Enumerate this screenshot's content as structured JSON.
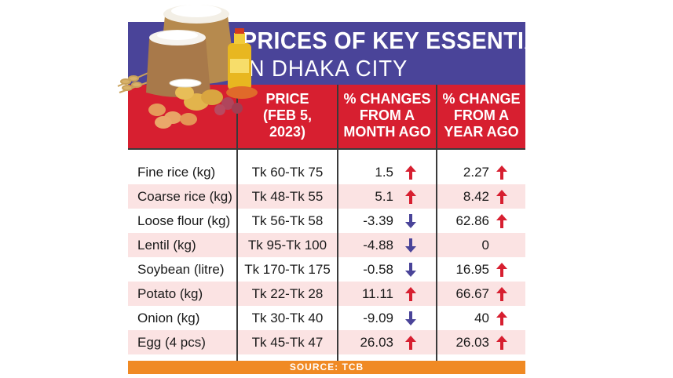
{
  "title_line1": "PRICES OF KEY ESSENTIALS",
  "title_line2": "IN DHAKA CITY",
  "headers": {
    "price": "PRICE\n(FEB 5,\n2023)",
    "month": "% CHANGES\nFROM A\nMONTH AGO",
    "year": "% CHANGE\nFROM A\nYEAR AGO"
  },
  "rows": [
    {
      "item": "Fine rice (kg)",
      "price": "Tk 60-Tk 75",
      "month": "1.5",
      "month_dir": "up",
      "year": "2.27",
      "year_dir": "up"
    },
    {
      "item": "Coarse rice (kg)",
      "price": "Tk 48-Tk 55",
      "month": "5.1",
      "month_dir": "up",
      "year": "8.42",
      "year_dir": "up"
    },
    {
      "item": "Loose flour (kg)",
      "price": "Tk 56-Tk 58",
      "month": "-3.39",
      "month_dir": "down",
      "year": "62.86",
      "year_dir": "up"
    },
    {
      "item": "Lentil (kg)",
      "price": "Tk 95-Tk 100",
      "month": "-4.88",
      "month_dir": "down",
      "year": "0",
      "year_dir": "none"
    },
    {
      "item": "Soybean (litre)",
      "price": "Tk 170-Tk 175",
      "month": "-0.58",
      "month_dir": "down",
      "year": "16.95",
      "year_dir": "up"
    },
    {
      "item": "Potato (kg)",
      "price": "Tk 22-Tk 28",
      "month": "11.11",
      "month_dir": "up",
      "year": "66.67",
      "year_dir": "up"
    },
    {
      "item": "Onion (kg)",
      "price": "Tk 30-Tk 40",
      "month": "-9.09",
      "month_dir": "down",
      "year": "40",
      "year_dir": "up"
    },
    {
      "item": "Egg (4 pcs)",
      "price": "Tk 45-Tk 47",
      "month": "26.03",
      "month_dir": "up",
      "year": "26.03",
      "year_dir": "up"
    }
  ],
  "source": "SOURCE: TCB",
  "colors": {
    "title_band": "#4a4499",
    "header_band": "#d71f30",
    "row_shade": "#fbe3e3",
    "up_arrow": "#d71f30",
    "down_arrow": "#4a4499",
    "source_band": "#f08a24"
  },
  "icons": {
    "illustration": "food-essentials-illustration",
    "up": "arrow-up-icon",
    "down": "arrow-down-icon"
  }
}
